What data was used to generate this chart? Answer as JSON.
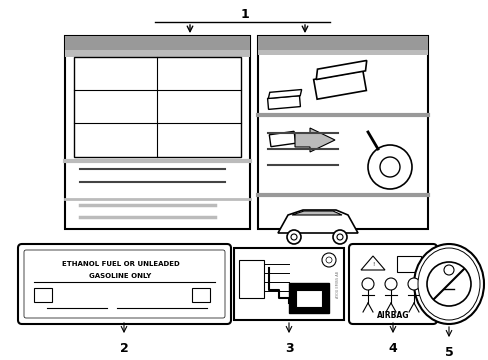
{
  "bg_color": "#ffffff",
  "line_color": "#000000",
  "gray_fill": "#999999",
  "light_gray_fill": "#bbbbbb",
  "dark_line": "#444444",
  "ethanol_line1": "ETHANOL FUEL OR UNLEADED",
  "ethanol_line2": "GASOLINE ONLY",
  "airbag_text": "AIRBAG",
  "lbl1": "1",
  "lbl2": "2",
  "lbl3": "3",
  "lbl4": "4",
  "lbl5": "5",
  "figw": 4.89,
  "figh": 3.6,
  "dpi": 100
}
